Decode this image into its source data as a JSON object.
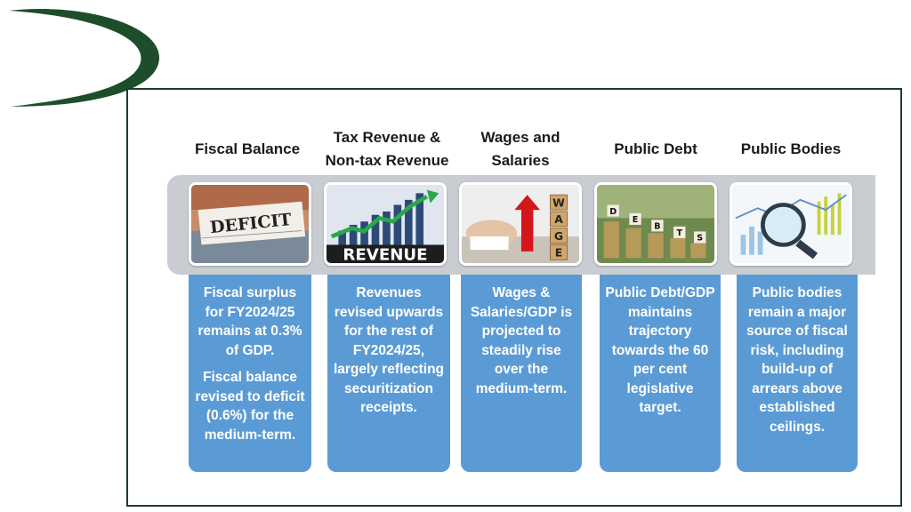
{
  "columns": [
    {
      "title": "Fiscal Balance",
      "image_label": "DEFICIT",
      "paragraphs": [
        "Fiscal surplus for FY2024/25 remains at 0.3% of GDP.",
        "Fiscal balance revised to deficit (0.6%) for the medium-term."
      ]
    },
    {
      "title": "Tax Revenue & Non-tax Revenue",
      "image_label": "REVENUE",
      "paragraphs": [
        "Revenues revised upwards for the rest of FY2024/25, largely reflecting securitization receipts."
      ]
    },
    {
      "title": "Wages and Salaries",
      "image_label": "WAGE",
      "paragraphs": [
        "Wages & Salaries/GDP is projected to steadily rise over the medium-term."
      ]
    },
    {
      "title": "Public Debt",
      "image_label": "DEBTS",
      "paragraphs": [
        "Public Debt/GDP maintains trajectory towards the 60 per cent legislative target."
      ]
    },
    {
      "title": "Public Bodies",
      "image_label": "",
      "paragraphs": [
        "Public bodies remain a major source of fiscal risk, including build-up of arrears above established ceilings."
      ]
    }
  ],
  "colors": {
    "card": "#5b9bd5",
    "band": "#c9cdd2",
    "frame": "#1f3b33",
    "logo": "#1e4d2b"
  }
}
